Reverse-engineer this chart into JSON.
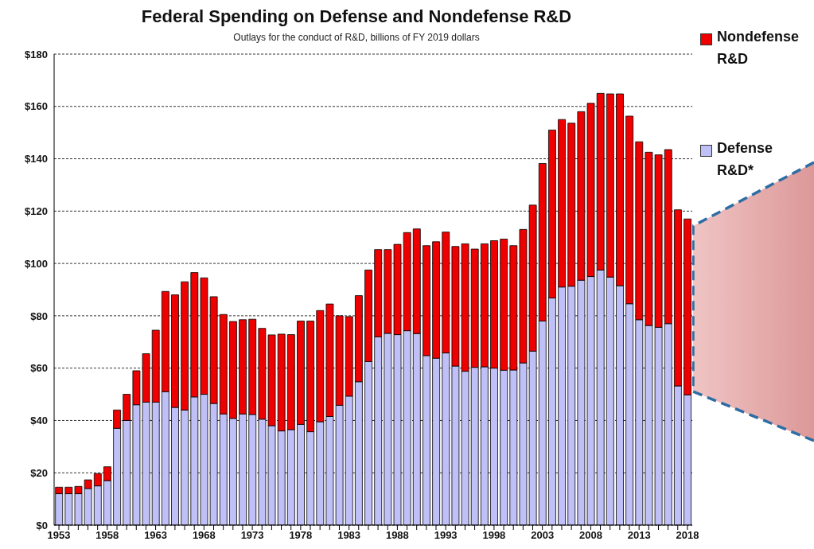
{
  "chart_data": {
    "type": "bar",
    "title": "Federal Spending on Defense and Nondefense R&D",
    "subtitle": "Outlays for the conduct of R&D, billions of FY 2019 dollars",
    "categories": [
      "1953",
      null,
      null,
      null,
      null,
      "1958",
      null,
      null,
      null,
      null,
      "1963",
      null,
      null,
      null,
      null,
      "1968",
      null,
      null,
      null,
      null,
      "1973",
      null,
      null,
      null,
      null,
      "1978",
      null,
      null,
      null,
      null,
      "1983",
      null,
      null,
      null,
      null,
      "1988",
      null,
      null,
      null,
      null,
      "1993",
      null,
      null,
      null,
      null,
      "1998",
      null,
      null,
      null,
      null,
      "2003",
      null,
      null,
      null,
      null,
      "2008",
      null,
      null,
      null,
      null,
      "2013",
      null,
      null,
      null,
      null,
      "2018"
    ],
    "stacked": true,
    "series": [
      {
        "name": "Defense R&D*",
        "color": "#c0c0f8",
        "values": [
          12,
          12,
          12,
          14,
          15,
          17,
          37,
          40,
          46,
          47,
          47,
          51,
          45,
          44,
          49,
          50,
          46.5,
          42.5,
          40.8,
          42.5,
          42.3,
          40.5,
          38,
          36,
          36.5,
          38.5,
          35.7,
          39.5,
          41.5,
          45.8,
          49.3,
          54.8,
          62.5,
          72,
          73.3,
          72.8,
          74.3,
          73.2,
          64.8,
          63.8,
          65.8,
          60.8,
          58.8,
          60.3,
          60.5,
          60,
          59.2,
          59.3,
          62,
          66.5,
          78,
          86.8,
          91,
          91.3,
          93.6,
          95,
          97.5,
          94.8,
          91.5,
          84.6,
          78.5,
          76.3,
          75.6,
          77,
          53.2,
          49.8
        ]
      },
      {
        "name": "Nondefense R&D",
        "color": "#ee0000",
        "values": [
          2.5,
          2.5,
          2.8,
          3.3,
          4.7,
          5.3,
          7,
          10,
          13,
          18.5,
          27.5,
          38.3,
          43,
          49,
          47.5,
          44.5,
          40.8,
          38,
          37,
          36,
          36.4,
          34.7,
          34.7,
          37,
          36.3,
          39.5,
          42.3,
          42.5,
          43,
          34.2,
          30.4,
          32.9,
          35,
          33.3,
          32,
          34.5,
          37.5,
          40,
          42,
          44.5,
          46.2,
          45.7,
          48.7,
          45.2,
          47,
          48.7,
          50.1,
          47.5,
          51,
          55.8,
          60.2,
          64.2,
          64,
          62.3,
          64.4,
          66.2,
          67.5,
          70,
          73.3,
          71.7,
          68,
          66.2,
          65.9,
          66.5,
          67.3,
          67.2
        ]
      }
    ],
    "ylim": [
      0,
      180
    ],
    "yticks": [
      {
        "value": 0,
        "label": "$0"
      },
      {
        "value": 20,
        "label": "$20"
      },
      {
        "value": 40,
        "label": "$40"
      },
      {
        "value": 60,
        "label": "$60"
      },
      {
        "value": 80,
        "label": "$80"
      },
      {
        "value": 100,
        "label": "$100"
      },
      {
        "value": 120,
        "label": "$120"
      },
      {
        "value": 140,
        "label": "$140"
      },
      {
        "value": 160,
        "label": "$160"
      },
      {
        "value": 180,
        "label": "$180"
      }
    ],
    "grid": "y",
    "legend": "top right"
  }
}
